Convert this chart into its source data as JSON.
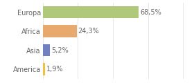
{
  "categories": [
    "America",
    "Asia",
    "Africa",
    "Europa"
  ],
  "values": [
    1.9,
    5.2,
    24.3,
    68.5
  ],
  "bar_colors": [
    "#f0c040",
    "#7080c0",
    "#e8a96e",
    "#b0c87a"
  ],
  "labels": [
    "1,9%",
    "5,2%",
    "24,3%",
    "68,5%"
  ],
  "xlim": [
    0,
    105
  ],
  "background_color": "#ffffff",
  "bar_height": 0.65,
  "label_fontsize": 7.0,
  "tick_fontsize": 7.0,
  "text_color": "#666666",
  "grid_color": "#dddddd"
}
